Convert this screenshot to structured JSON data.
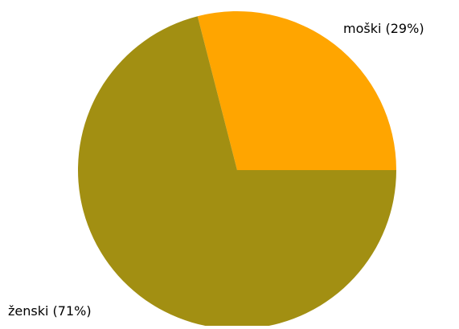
{
  "chart_data": {
    "type": "pie",
    "title": "",
    "slices": [
      {
        "label": "moški (29%)",
        "value": 29,
        "color": "#ffa500"
      },
      {
        "label": "ženski (71%)",
        "value": 71,
        "color": "#a28f12"
      }
    ],
    "start_angle_deg": 0,
    "direction": "counterclockwise",
    "legend": "none"
  }
}
